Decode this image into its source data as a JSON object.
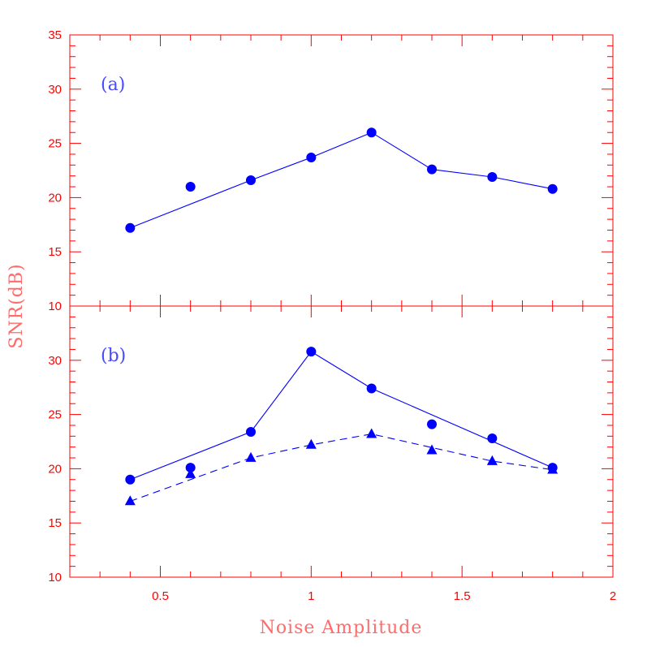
{
  "chart_data": [
    {
      "panel_label": "(a)",
      "type": "line",
      "xlim": [
        0.2,
        2
      ],
      "ylim": [
        10,
        35
      ],
      "yticks": [
        "10",
        "15",
        "20",
        "25",
        "30",
        "35"
      ],
      "xticks": [],
      "series": [
        {
          "points": [
            {
              "x": 0.4,
              "y": 17.2
            },
            {
              "x": 0.6,
              "y": 21.0
            },
            {
              "x": 0.8,
              "y": 21.6
            },
            {
              "x": 1.0,
              "y": 23.7
            },
            {
              "x": 1.2,
              "y": 26.0
            },
            {
              "x": 1.4,
              "y": 22.6
            },
            {
              "x": 1.6,
              "y": 21.9
            },
            {
              "x": 1.8,
              "y": 20.8
            }
          ],
          "line_points": [
            {
              "x": 0.4,
              "y": 17.2
            },
            {
              "x": 0.8,
              "y": 21.6
            },
            {
              "x": 1.0,
              "y": 23.7
            },
            {
              "x": 1.2,
              "y": 26.0
            },
            {
              "x": 1.4,
              "y": 22.6
            },
            {
              "x": 1.6,
              "y": 21.9
            },
            {
              "x": 1.8,
              "y": 20.8
            }
          ],
          "marker": "circle",
          "line_style": "solid"
        }
      ]
    },
    {
      "panel_label": "(b)",
      "type": "line",
      "xlim": [
        0.2,
        2
      ],
      "ylim": [
        10,
        35
      ],
      "yticks": [
        "10",
        "15",
        "20",
        "25",
        "30"
      ],
      "xticks": [
        "0.5",
        "1",
        "1.5",
        "2"
      ],
      "series": [
        {
          "points": [
            {
              "x": 0.4,
              "y": 19.0
            },
            {
              "x": 0.6,
              "y": 20.1
            },
            {
              "x": 0.8,
              "y": 23.4
            },
            {
              "x": 1.0,
              "y": 30.8
            },
            {
              "x": 1.2,
              "y": 27.4
            },
            {
              "x": 1.4,
              "y": 24.1
            },
            {
              "x": 1.6,
              "y": 22.8
            },
            {
              "x": 1.8,
              "y": 20.1
            }
          ],
          "line_points": [
            {
              "x": 0.4,
              "y": 19.0
            },
            {
              "x": 0.8,
              "y": 23.4
            },
            {
              "x": 1.0,
              "y": 30.8
            },
            {
              "x": 1.2,
              "y": 27.4
            },
            {
              "x": 1.8,
              "y": 20.1
            }
          ],
          "marker": "circle",
          "line_style": "solid"
        },
        {
          "points": [
            {
              "x": 0.4,
              "y": 17.0
            },
            {
              "x": 0.6,
              "y": 19.5
            },
            {
              "x": 0.8,
              "y": 21.0
            },
            {
              "x": 1.0,
              "y": 22.2
            },
            {
              "x": 1.2,
              "y": 23.2
            },
            {
              "x": 1.4,
              "y": 21.7
            },
            {
              "x": 1.6,
              "y": 20.7
            },
            {
              "x": 1.8,
              "y": 19.9
            }
          ],
          "line_points": [
            {
              "x": 0.4,
              "y": 17.0
            },
            {
              "x": 0.8,
              "y": 21.0
            },
            {
              "x": 1.0,
              "y": 22.2
            },
            {
              "x": 1.2,
              "y": 23.2
            },
            {
              "x": 1.6,
              "y": 20.7
            },
            {
              "x": 1.8,
              "y": 19.9
            }
          ],
          "marker": "triangle",
          "line_style": "dashed"
        }
      ]
    }
  ],
  "axes": {
    "xlabel": "Noise Amplitude",
    "ylabel": "SNR(dB)"
  },
  "colors": {
    "axis": "#ff0000",
    "axis_title": "#ff6b6b",
    "data": "#0000ff",
    "panel_label": "#4a4aff",
    "background": "#ffffff"
  }
}
